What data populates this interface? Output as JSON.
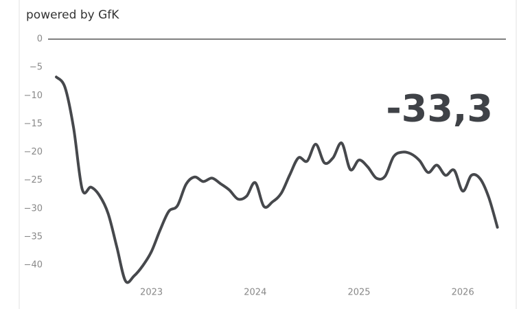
{
  "chart_data": {
    "type": "line",
    "title": "powered by GfK",
    "categories": [
      null,
      null,
      null,
      null,
      null,
      null,
      null,
      null,
      null,
      null,
      null,
      "2023",
      null,
      null,
      null,
      null,
      null,
      null,
      null,
      null,
      null,
      null,
      null,
      "2024",
      null,
      null,
      null,
      null,
      null,
      null,
      null,
      null,
      null,
      null,
      null,
      "2025",
      null,
      null,
      null,
      null,
      null,
      null,
      null,
      null,
      null,
      null,
      null,
      "2026",
      null,
      null,
      null,
      null
    ],
    "values": [
      -6.7,
      -8.5,
      -15.7,
      -26.6,
      -26.2,
      -27.7,
      -30.9,
      -36.8,
      -42.8,
      -41.9,
      -40.1,
      -37.6,
      -33.8,
      -30.5,
      -29.5,
      -25.7,
      -24.4,
      -25.2,
      -24.6,
      -25.6,
      -26.7,
      -28.3,
      -27.8,
      -25.4,
      -29.6,
      -28.8,
      -27.3,
      -24.0,
      -21.0,
      -21.6,
      -18.6,
      -21.9,
      -21.0,
      -18.4,
      -23.1,
      -21.4,
      -22.6,
      -24.6,
      -24.3,
      -20.8,
      -20.0,
      -20.3,
      -21.5,
      -23.6,
      -22.3,
      -24.1,
      -23.2,
      -26.9,
      -24.1,
      -24.7,
      -28.0,
      -33.3
    ],
    "value_labels": [
      null,
      null,
      null,
      null,
      null,
      null,
      null,
      null,
      null,
      null,
      null,
      null,
      null,
      null,
      null,
      null,
      null,
      null,
      null,
      null,
      null,
      null,
      null,
      null,
      null,
      null,
      null,
      null,
      null,
      null,
      null,
      null,
      null,
      null,
      null,
      null,
      null,
      null,
      null,
      null,
      null,
      null,
      null,
      null,
      null,
      null,
      null,
      null,
      null,
      null,
      null,
      "-33,3"
    ],
    "color": "#46484c",
    "ylim": [
      -44,
      0
    ],
    "yticks": [
      0,
      {
        "value": -5,
        "label": "−5"
      },
      {
        "value": -10,
        "label": "−10"
      },
      {
        "value": -15,
        "label": "−15"
      },
      {
        "value": -20,
        "label": "−20"
      },
      {
        "value": -25,
        "label": "−25"
      },
      {
        "value": -30,
        "label": "−30"
      },
      {
        "value": -35,
        "label": "−35"
      },
      {
        "value": -40,
        "label": "−40"
      }
    ]
  }
}
